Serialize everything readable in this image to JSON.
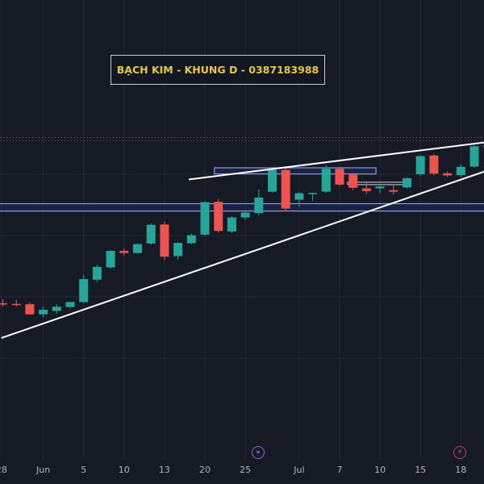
{
  "watermark": {
    "text": "BẠCH KIM - KHUNG D - 0387183988"
  },
  "icons": {
    "event_dividend": "double-chevron-icon",
    "event_earnings": "bolt-icon"
  },
  "colors": {
    "background": "#161a25",
    "bull": "#26a69a",
    "bear": "#ef5350",
    "trendline": "#ffffff",
    "zone_border": "#8c9cdc",
    "zone_fill": "#1e2a5a",
    "grid": "#232836",
    "axis_text": "#b2b5be",
    "watermark_text": "#e6c94a"
  },
  "chart_data": {
    "type": "candlestick",
    "title": "",
    "xlabel": "",
    "ylabel": "",
    "ylim": [
      0,
      100
    ],
    "grid": true,
    "x_ticks": [
      "28",
      "Jun",
      "5",
      "10",
      "13",
      "20",
      "25",
      "Jul",
      "7",
      "10",
      "15",
      "18"
    ],
    "candles": [
      {
        "index": 0,
        "open": 37.9,
        "high": 39.2,
        "low": 36.9,
        "close": 37.6
      },
      {
        "index": 1,
        "open": 37.7,
        "high": 39.0,
        "low": 36.8,
        "close": 37.3
      },
      {
        "index": 2,
        "open": 37.6,
        "high": 38.2,
        "low": 34.0,
        "close": 34.3
      },
      {
        "index": 3,
        "open": 34.3,
        "high": 36.8,
        "low": 33.3,
        "close": 35.8
      },
      {
        "index": 4,
        "open": 35.4,
        "high": 37.6,
        "low": 34.6,
        "close": 36.8
      },
      {
        "index": 5,
        "open": 36.7,
        "high": 38.4,
        "low": 36.2,
        "close": 38.3
      },
      {
        "index": 6,
        "open": 38.3,
        "high": 47.2,
        "low": 38.1,
        "close": 45.8
      },
      {
        "index": 7,
        "open": 45.6,
        "high": 50.5,
        "low": 44.8,
        "close": 49.8
      },
      {
        "index": 8,
        "open": 49.6,
        "high": 55.2,
        "low": 49.2,
        "close": 55.0
      },
      {
        "index": 9,
        "open": 55.0,
        "high": 55.8,
        "low": 53.5,
        "close": 54.3
      },
      {
        "index": 10,
        "open": 54.3,
        "high": 57.5,
        "low": 54.1,
        "close": 57.2
      },
      {
        "index": 11,
        "open": 57.4,
        "high": 64.0,
        "low": 57.0,
        "close": 63.5
      },
      {
        "index": 12,
        "open": 63.6,
        "high": 64.5,
        "low": 52.0,
        "close": 53.1
      },
      {
        "index": 13,
        "open": 53.3,
        "high": 57.8,
        "low": 52.2,
        "close": 57.6
      },
      {
        "index": 14,
        "open": 57.5,
        "high": 60.6,
        "low": 57.1,
        "close": 60.1
      },
      {
        "index": 15,
        "open": 60.3,
        "high": 71.2,
        "low": 59.9,
        "close": 70.9
      },
      {
        "index": 16,
        "open": 71.0,
        "high": 72.0,
        "low": 61.0,
        "close": 61.5
      },
      {
        "index": 17,
        "open": 61.3,
        "high": 66.3,
        "low": 60.8,
        "close": 65.9
      },
      {
        "index": 18,
        "open": 65.9,
        "high": 67.9,
        "low": 65.2,
        "close": 67.5
      },
      {
        "index": 19,
        "open": 67.3,
        "high": 75.0,
        "low": 66.7,
        "close": 72.4
      },
      {
        "index": 20,
        "open": 74.3,
        "high": 81.8,
        "low": 74.0,
        "close": 81.4
      },
      {
        "index": 21,
        "open": 81.4,
        "high": 82.1,
        "low": 68.0,
        "close": 68.8
      },
      {
        "index": 22,
        "open": 71.7,
        "high": 74.2,
        "low": 69.4,
        "close": 73.8
      },
      {
        "index": 23,
        "open": 73.6,
        "high": 74.0,
        "low": 71.3,
        "close": 73.9
      },
      {
        "index": 24,
        "open": 74.3,
        "high": 83.0,
        "low": 73.9,
        "close": 81.8
      },
      {
        "index": 25,
        "open": 81.8,
        "high": 82.1,
        "low": 76.2,
        "close": 76.6
      },
      {
        "index": 26,
        "open": 79.9,
        "high": 80.5,
        "low": 74.8,
        "close": 75.6
      },
      {
        "index": 27,
        "open": 75.4,
        "high": 77.2,
        "low": 73.6,
        "close": 74.5
      },
      {
        "index": 28,
        "open": 75.4,
        "high": 76.2,
        "low": 73.8,
        "close": 76.0
      },
      {
        "index": 29,
        "open": 74.8,
        "high": 76.9,
        "low": 73.4,
        "close": 74.3
      },
      {
        "index": 30,
        "open": 75.7,
        "high": 79.0,
        "low": 75.3,
        "close": 78.7
      },
      {
        "index": 31,
        "open": 80.0,
        "high": 86.2,
        "low": 79.5,
        "close": 85.9
      },
      {
        "index": 32,
        "open": 86.1,
        "high": 86.5,
        "low": 79.6,
        "close": 80.2
      },
      {
        "index": 33,
        "open": 80.3,
        "high": 80.9,
        "low": 79.1,
        "close": 79.6
      },
      {
        "index": 34,
        "open": 79.7,
        "high": 83.2,
        "low": 79.1,
        "close": 82.4
      },
      {
        "index": 35,
        "open": 82.5,
        "high": 89.6,
        "low": 82.2,
        "close": 89.1
      },
      {
        "index": 36,
        "open": 88.9,
        "high": 90.1,
        "low": 88.4,
        "close": 89.5
      }
    ],
    "x_tick_candle_index": [
      -0.1,
      3.0,
      6.0,
      9.0,
      12.0,
      15.0,
      18.0,
      22.0,
      25.0,
      28.0,
      31.0,
      34.0
    ],
    "horizontal_zones": [
      {
        "index_from": -1,
        "index_to": 37,
        "low": 68.0,
        "high": 70.4
      },
      {
        "index_from": 15.7,
        "index_to": 27.7,
        "low": 80.1,
        "high": 82.1
      }
    ],
    "small_rectangles": [
      {
        "index_from": 25.6,
        "index_to": 29.8,
        "low": 76.6,
        "high": 77.4
      }
    ],
    "trendlines": [
      {
        "x1": -0.1,
        "y1": 26.6,
        "x2": 37.8,
        "y2": 84.0
      },
      {
        "x1": 13.8,
        "y1": 78.3,
        "x2": 37.8,
        "y2": 91.5
      }
    ],
    "reference_lines": [
      {
        "value": 92.0,
        "style": "dotted"
      },
      {
        "value": 91.0,
        "style": "dotted"
      }
    ]
  }
}
